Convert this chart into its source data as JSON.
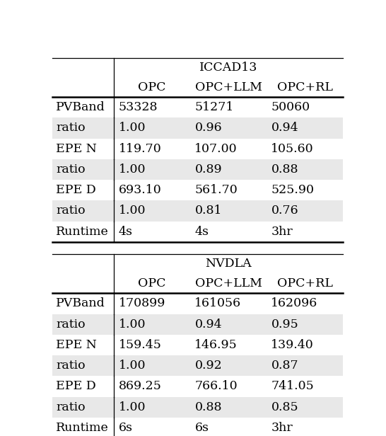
{
  "table1_title": "ICCAD13",
  "table2_title": "NVDLA",
  "col_headers": [
    "OPC",
    "OPC+LLM",
    "OPC+RL"
  ],
  "row_labels_1": [
    "PVBand",
    "ratio",
    "EPE N",
    "ratio",
    "EPE D",
    "ratio",
    "Runtime"
  ],
  "table1_data": [
    [
      "53328",
      "51271",
      "50060"
    ],
    [
      "1.00",
      "0.96",
      "0.94"
    ],
    [
      "119.70",
      "107.00",
      "105.60"
    ],
    [
      "1.00",
      "0.89",
      "0.88"
    ],
    [
      "693.10",
      "561.70",
      "525.90"
    ],
    [
      "1.00",
      "0.81",
      "0.76"
    ],
    [
      "4s",
      "4s",
      "3hr"
    ]
  ],
  "row_labels_2": [
    "PVBand",
    "ratio",
    "EPE N",
    "ratio",
    "EPE D",
    "ratio",
    "Runtime"
  ],
  "table2_data": [
    [
      "170899",
      "161056",
      "162096"
    ],
    [
      "1.00",
      "0.94",
      "0.95"
    ],
    [
      "159.45",
      "146.95",
      "139.40"
    ],
    [
      "1.00",
      "0.92",
      "0.87"
    ],
    [
      "869.25",
      "766.10",
      "741.05"
    ],
    [
      "1.00",
      "0.88",
      "0.85"
    ],
    [
      "6s",
      "6s",
      "3hr"
    ]
  ],
  "shaded_rows": [
    1,
    3,
    5
  ],
  "shade_color": "#e8e8e8",
  "bg_color": "#ffffff",
  "font_size": 12.5,
  "lw_thick": 1.8,
  "lw_thin": 0.9,
  "figw": 5.46,
  "figh": 6.16,
  "dpi": 100
}
